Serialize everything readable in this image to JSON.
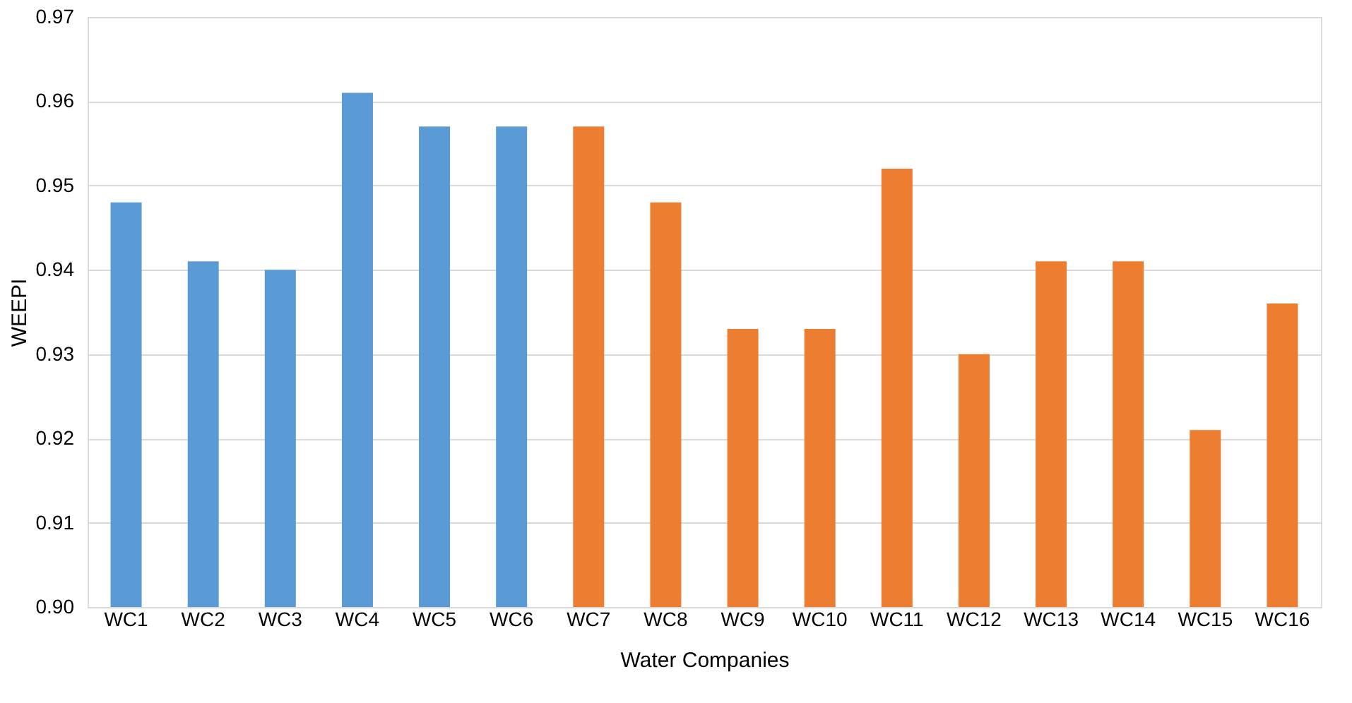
{
  "chart_data": {
    "type": "bar",
    "xlabel": "Water Companies",
    "ylabel": "WEEPI",
    "categories": [
      "WC1",
      "WC2",
      "WC3",
      "WC4",
      "WC5",
      "WC6",
      "WC7",
      "WC8",
      "WC9",
      "WC10",
      "WC11",
      "WC12",
      "WC13",
      "WC14",
      "WC15",
      "WC16"
    ],
    "values": [
      0.948,
      0.941,
      0.94,
      0.961,
      0.957,
      0.957,
      0.957,
      0.948,
      0.933,
      0.933,
      0.952,
      0.93,
      0.941,
      0.941,
      0.921,
      0.936
    ],
    "colors": [
      "#5b9bd5",
      "#5b9bd5",
      "#5b9bd5",
      "#5b9bd5",
      "#5b9bd5",
      "#5b9bd5",
      "#ed7d31",
      "#ed7d31",
      "#ed7d31",
      "#ed7d31",
      "#ed7d31",
      "#ed7d31",
      "#ed7d31",
      "#ed7d31",
      "#ed7d31",
      "#ed7d31"
    ],
    "ylim": [
      0.9,
      0.97
    ],
    "yticks": [
      {
        "value": 0.9,
        "label": "0.90"
      },
      {
        "value": 0.91,
        "label": "0.91"
      },
      {
        "value": 0.92,
        "label": "0.92"
      },
      {
        "value": 0.93,
        "label": "0.93"
      },
      {
        "value": 0.94,
        "label": "0.94"
      },
      {
        "value": 0.95,
        "label": "0.95"
      },
      {
        "value": 0.96,
        "label": "0.96"
      },
      {
        "value": 0.97,
        "label": "0.97"
      }
    ],
    "grid": "y"
  }
}
